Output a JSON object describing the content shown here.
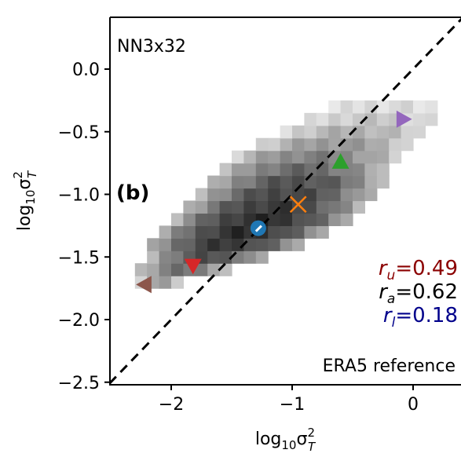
{
  "chart_data": {
    "type": "heatmap",
    "model_label": "NN3x32",
    "panel_label": "(b)",
    "reference_label": "ERA5 reference",
    "xlabel": "log₁₀σ²T",
    "ylabel": "log₁₀σ²T",
    "xlim": [
      -2.55,
      0.4
    ],
    "ylim": [
      -2.5,
      0.42
    ],
    "x_ticks": [
      -2,
      -1,
      0
    ],
    "x_tick_labels": [
      "−2",
      "−1",
      "0"
    ],
    "y_ticks": [
      -2.5,
      -2.0,
      -1.5,
      -1.0,
      -0.5,
      0.0
    ],
    "y_tick_labels": [
      "−2.5",
      "−2.0",
      "−1.5",
      "−1.0",
      "−0.5",
      "0.0"
    ],
    "diagonal": "dashed 1:1 line",
    "density_cell_size": 0.1,
    "density": [
      {
        "x0": -2.3,
        "x1": -1.9,
        "y": -1.7,
        "v": 0.35
      },
      {
        "x0": -2.3,
        "x1": -1.5,
        "y": -1.6,
        "v": 0.55
      },
      {
        "x0": -2.2,
        "x1": -1.2,
        "y": -1.5,
        "v": 0.7
      },
      {
        "x0": -2.2,
        "x1": -0.9,
        "y": -1.4,
        "v": 0.8
      },
      {
        "x0": -2.1,
        "x1": -0.7,
        "y": -1.3,
        "v": 0.85
      },
      {
        "x0": -2.0,
        "x1": -0.5,
        "y": -1.2,
        "v": 0.85
      },
      {
        "x0": -1.9,
        "x1": -0.4,
        "y": -1.1,
        "v": 0.8
      },
      {
        "x0": -1.8,
        "x1": -0.3,
        "y": -1.0,
        "v": 0.75
      },
      {
        "x0": -1.7,
        "x1": -0.2,
        "y": -0.9,
        "v": 0.7
      },
      {
        "x0": -1.6,
        "x1": -0.2,
        "y": -0.8,
        "v": 0.6
      },
      {
        "x0": -1.5,
        "x1": -0.1,
        "y": -0.7,
        "v": 0.5
      },
      {
        "x0": -1.3,
        "x1": 0.0,
        "y": -0.6,
        "v": 0.4
      },
      {
        "x0": -1.1,
        "x1": 0.1,
        "y": -0.5,
        "v": 0.3
      },
      {
        "x0": -0.9,
        "x1": 0.2,
        "y": -0.4,
        "v": 0.2
      },
      {
        "x0": -0.7,
        "x1": 0.2,
        "y": -0.3,
        "v": 0.12
      }
    ],
    "markers": [
      {
        "shape": "circle",
        "x": -1.28,
        "y": -1.27,
        "color": "#1f77b4"
      },
      {
        "shape": "x",
        "x": -0.95,
        "y": -1.08,
        "color": "#ff7f0e"
      },
      {
        "shape": "triangle-up",
        "x": -0.6,
        "y": -0.74,
        "color": "#2ca02c"
      },
      {
        "shape": "triangle-down",
        "x": -1.82,
        "y": -1.57,
        "color": "#d62728"
      },
      {
        "shape": "triangle-right",
        "x": -0.08,
        "y": -0.4,
        "color": "#9467bd"
      },
      {
        "shape": "triangle-left",
        "x": -2.22,
        "y": -1.72,
        "color": "#8c564b"
      }
    ],
    "stats": [
      {
        "label": "r",
        "sub": "u",
        "value": "=0.49",
        "color": "#8b0000"
      },
      {
        "label": "r",
        "sub": "a",
        "value": "=0.62",
        "color": "#000000"
      },
      {
        "label": "r",
        "sub": "l",
        "value": "=0.18",
        "color": "#00008b"
      }
    ],
    "grid": false
  }
}
